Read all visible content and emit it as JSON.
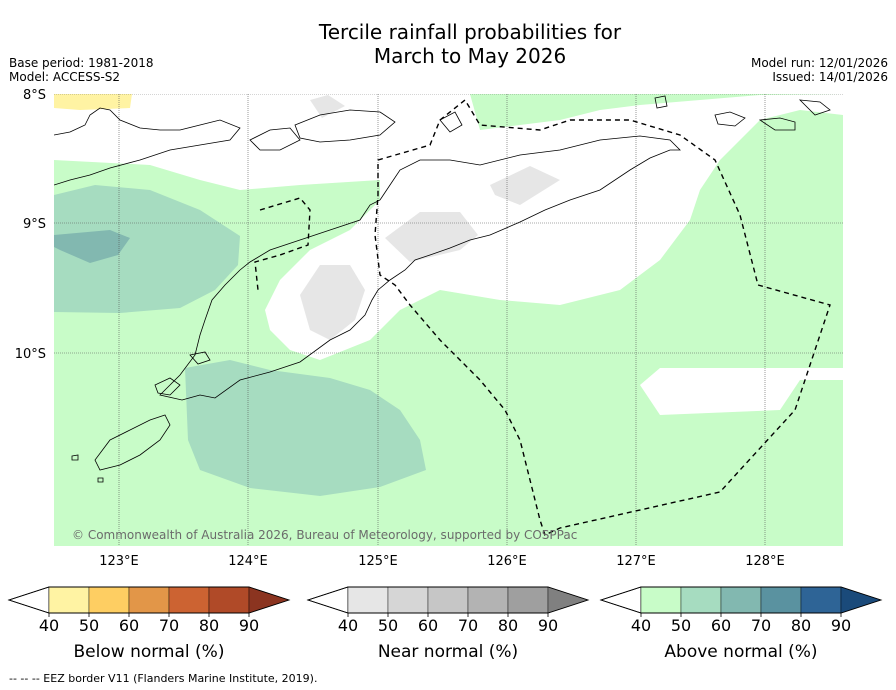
{
  "title_line1": "Tercile rainfall probabilities for",
  "title_line2": "March to May 2026",
  "meta_left": [
    "Base period: 1981-2018",
    "Model: ACCESS-S2"
  ],
  "meta_right": [
    "Model run: 12/01/2026",
    "Issued: 14/01/2026"
  ],
  "latitudes": [
    {
      "label": "8°S",
      "value": -8
    },
    {
      "label": "9°S",
      "value": -9
    },
    {
      "label": "10°S",
      "value": -10
    }
  ],
  "longitudes": [
    {
      "label": "123°E",
      "value": 123
    },
    {
      "label": "124°E",
      "value": 124
    },
    {
      "label": "125°E",
      "value": 125
    },
    {
      "label": "126°E",
      "value": 126
    },
    {
      "label": "127°E",
      "value": 127
    },
    {
      "label": "128°E",
      "value": 128
    }
  ],
  "copyright": "© Commonwealth of Australia 2026, Bureau of Meteorology, supported by COSPPac",
  "colorbars": [
    {
      "label": "Below normal (%)",
      "ticks": [
        "40",
        "50",
        "60",
        "70",
        "80",
        "90"
      ],
      "colors": [
        "#fff3a3",
        "#fece62",
        "#e29648",
        "#cc6332",
        "#b04a28",
        "#8b3420"
      ]
    },
    {
      "label": "Near normal (%)",
      "ticks": [
        "40",
        "50",
        "60",
        "70",
        "80",
        "90"
      ],
      "colors": [
        "#e6e6e6",
        "#d6d6d6",
        "#c6c6c6",
        "#b3b3b3",
        "#9f9f9f",
        "#808080"
      ]
    },
    {
      "label": "Above normal (%)",
      "ticks": [
        "40",
        "50",
        "60",
        "70",
        "80",
        "90"
      ],
      "colors": [
        "#c8fcc8",
        "#a6dcc0",
        "#82b8b0",
        "#5a92a0",
        "#2e6496",
        "#1a4a7a"
      ]
    }
  ],
  "footnote": "--  --  -- EEZ border V11 (Flanders Marine Institute, 2019)."
}
